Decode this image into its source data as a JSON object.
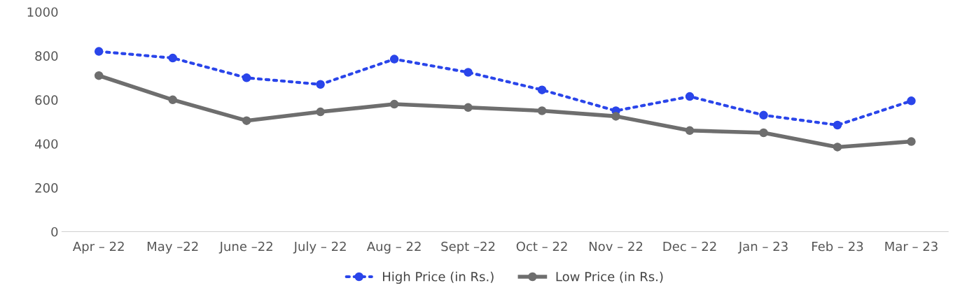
{
  "chart_data": {
    "type": "line",
    "categories": [
      "Apr – 22",
      "May –22",
      "June –22",
      "July – 22",
      "Aug – 22",
      "Sept –22",
      "Oct – 22",
      "Nov – 22",
      "Dec – 22",
      "Jan – 23",
      "Feb – 23",
      "Mar – 23"
    ],
    "series": [
      {
        "name": "High Price (in Rs.)",
        "color": "#2a45ea",
        "line_style": "dotted",
        "values": [
          820,
          790,
          700,
          670,
          785,
          725,
          645,
          550,
          615,
          530,
          485,
          595
        ]
      },
      {
        "name": "Low Price (in Rs.)",
        "color": "#6e6e6e",
        "line_style": "solid",
        "values": [
          710,
          600,
          505,
          545,
          580,
          565,
          550,
          525,
          460,
          450,
          385,
          410
        ]
      }
    ],
    "ylim": [
      0,
      1000
    ],
    "yticks": [
      0,
      200,
      400,
      600,
      800,
      1000
    ],
    "grid": false,
    "legend": "bottom",
    "marker": "circle"
  }
}
